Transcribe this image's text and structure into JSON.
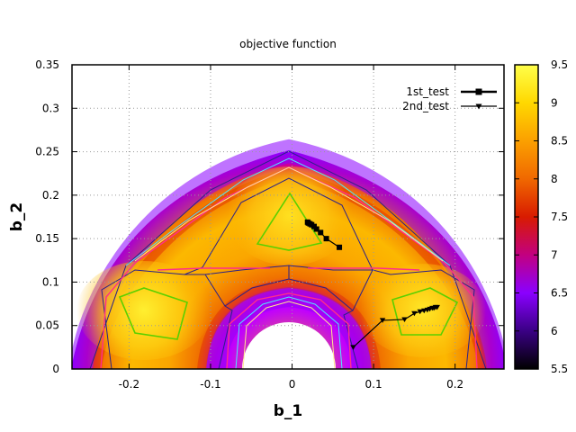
{
  "chart_data": {
    "type": "heatmap",
    "title": "objective function",
    "xlabel": "b_1",
    "ylabel": "b_2",
    "xlim": [
      -0.27,
      0.26
    ],
    "ylim": [
      0,
      0.35
    ],
    "xticks": [
      -0.2,
      -0.1,
      0,
      0.1,
      0.2
    ],
    "xtick_labels": [
      "-0.2",
      "-0.1",
      "0",
      "0.1",
      "0.2"
    ],
    "yticks": [
      0,
      0.05,
      0.1,
      0.15,
      0.2,
      0.25,
      0.3,
      0.35
    ],
    "ytick_labels": [
      "0",
      "0.05",
      "0.1",
      "0.15",
      "0.2",
      "0.25",
      "0.3",
      "0.35"
    ],
    "grid": true,
    "colorbar": {
      "range": [
        5.5,
        9.5
      ],
      "ticks": [
        5.5,
        6,
        6.5,
        7,
        7.5,
        8,
        8.5,
        9,
        9.5
      ],
      "tick_labels": [
        "5.5",
        "6",
        "6.5",
        "7",
        "7.5",
        "8",
        "8.5",
        "9",
        "9.5"
      ],
      "colors": [
        "#000000",
        "#3a0084",
        "#8a00ff",
        "#c20080",
        "#d81b00",
        "#f06800",
        "#fba000",
        "#ffd800",
        "#ffff4a"
      ]
    },
    "legend": {
      "placement": "top-right"
    },
    "series": [
      {
        "name": "1st_test",
        "marker": "square",
        "color": "#000000",
        "x": [
          0.058,
          0.042,
          0.035,
          0.03,
          0.027,
          0.024,
          0.022,
          0.02,
          0.019
        ],
        "y": [
          0.14,
          0.15,
          0.157,
          0.161,
          0.164,
          0.166,
          0.167,
          0.168,
          0.169
        ]
      },
      {
        "name": "2nd_test",
        "marker": "triangle-down",
        "color": "#000000",
        "x": [
          0.075,
          0.111,
          0.138,
          0.15,
          0.157,
          0.162,
          0.166,
          0.169,
          0.172,
          0.174,
          0.176,
          0.178
        ],
        "y": [
          0.025,
          0.056,
          0.057,
          0.064,
          0.066,
          0.067,
          0.068,
          0.069,
          0.07,
          0.07,
          0.071,
          0.071
        ]
      }
    ]
  }
}
